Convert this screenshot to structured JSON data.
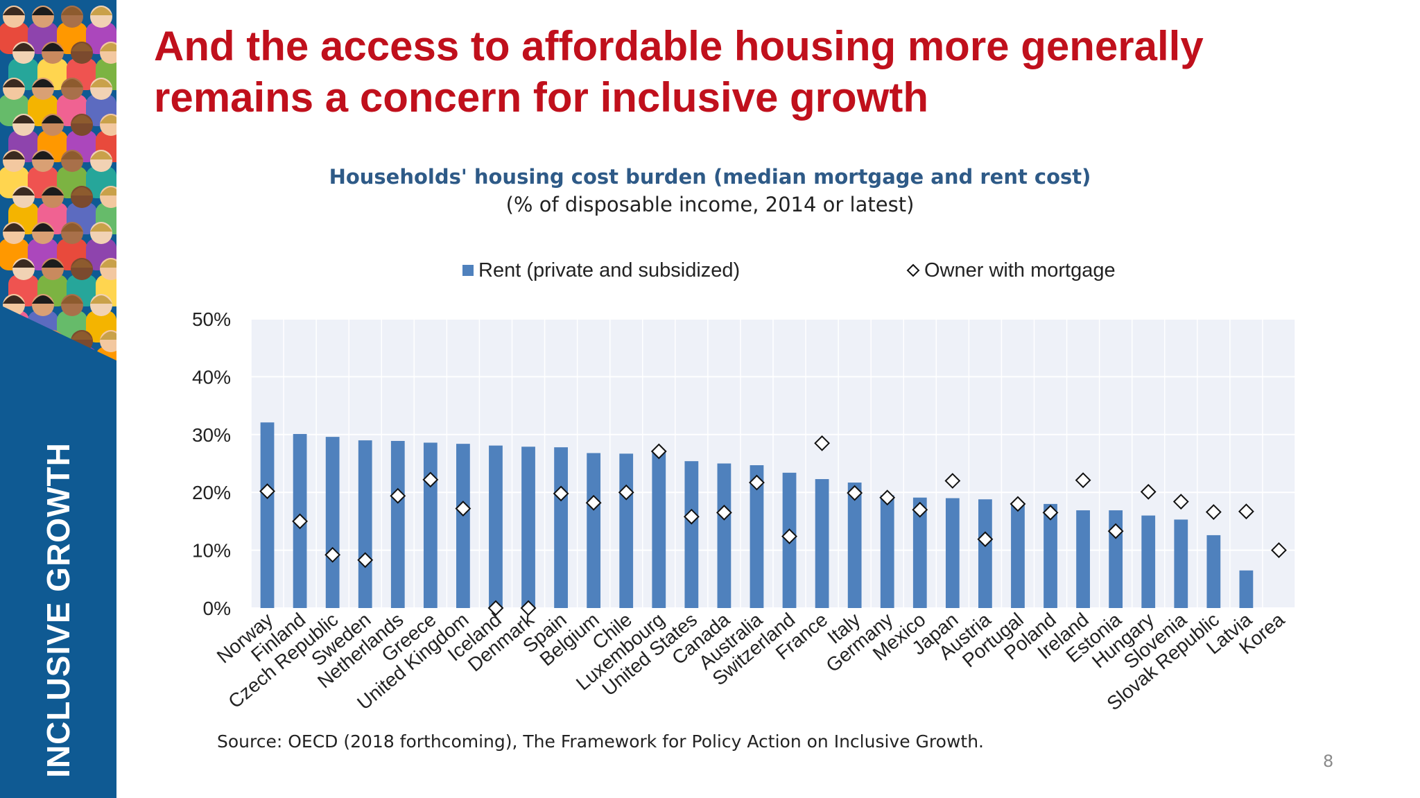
{
  "slide": {
    "title": "And the access to affordable housing more generally remains a concern for inclusive growth",
    "sidebar_label": "INCLUSIVE GROWTH",
    "source": "Source: OECD (2018 forthcoming), The Framework for Policy Action on Inclusive Growth.",
    "page_number": "8"
  },
  "colors": {
    "bar": "#4f81bd",
    "marker_fill": "#ffffff",
    "marker_stroke": "#111111",
    "plot_bg": "#eef1f8",
    "title_red": "#c0101c",
    "chart_title_blue": "#2e5a87",
    "sidebar_blue": "#0f5a93"
  },
  "chart_data": {
    "type": "bar",
    "title": "Households' housing cost burden (median mortgage and rent cost)",
    "subtitle": "(% of disposable income, 2014 or latest)",
    "categories": [
      "Norway",
      "Finland",
      "Czech Republic",
      "Sweden",
      "Netherlands",
      "Greece",
      "United Kingdom",
      "Iceland",
      "Denmark",
      "Spain",
      "Belgium",
      "Chile",
      "Luxembourg",
      "United States",
      "Canada",
      "Australia",
      "Switzerland",
      "France",
      "Italy",
      "Germany",
      "Mexico",
      "Japan",
      "Austria",
      "Portugal",
      "Poland",
      "Ireland",
      "Estonia",
      "Hungary",
      "Slovenia",
      "Slovak Republic",
      "Latvia",
      "Korea"
    ],
    "series": [
      {
        "name": "Rent (private and subsidized)",
        "kind": "bar",
        "values": [
          32.1,
          30.1,
          29.6,
          29.0,
          28.9,
          28.6,
          28.4,
          28.1,
          27.9,
          27.8,
          26.8,
          26.7,
          27.3,
          25.4,
          25.0,
          24.7,
          23.4,
          22.3,
          21.7,
          19.5,
          19.1,
          19.0,
          18.8,
          18.2,
          18.0,
          16.9,
          16.9,
          16.0,
          15.3,
          12.6,
          6.5,
          null
        ]
      },
      {
        "name": "Owner with mortgage",
        "kind": "marker",
        "values": [
          20.2,
          15.0,
          9.2,
          8.3,
          19.4,
          22.2,
          17.2,
          0.0,
          0.0,
          19.8,
          18.2,
          20.0,
          27.1,
          15.8,
          16.5,
          21.7,
          12.4,
          28.5,
          19.9,
          19.1,
          17.0,
          22.0,
          11.9,
          18.0,
          16.5,
          22.1,
          13.3,
          20.1,
          18.4,
          16.6,
          16.7,
          10.0
        ]
      }
    ],
    "ylim": [
      0,
      50
    ],
    "yticks": [
      0,
      10,
      20,
      30,
      40,
      50
    ],
    "ytick_labels": [
      "0%",
      "10%",
      "20%",
      "30%",
      "40%",
      "50%"
    ],
    "xlabel": "",
    "ylabel": "",
    "grid": true,
    "legend": "top"
  }
}
